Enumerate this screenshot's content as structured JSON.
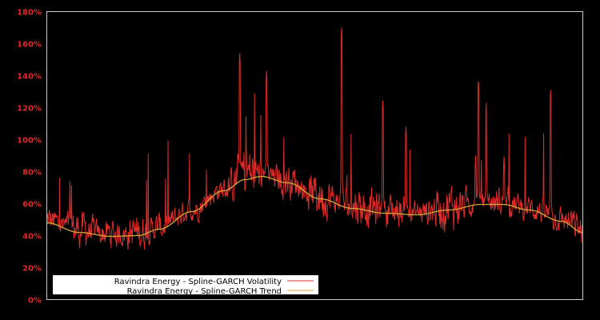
{
  "chart_data": {
    "type": "line",
    "title": "",
    "xlabel": "",
    "ylabel": "",
    "ylim": [
      0,
      180
    ],
    "y_ticks": [
      "0%",
      "20%",
      "40%",
      "60%",
      "80%",
      "100%",
      "120%",
      "140%",
      "160%",
      "180%"
    ],
    "y_tick_values": [
      0,
      20,
      40,
      60,
      80,
      100,
      120,
      140,
      160,
      180
    ],
    "grid": false,
    "legend_position": "lower left",
    "x_normalized": [
      0.0,
      0.06,
      0.12,
      0.17,
      0.21,
      0.27,
      0.33,
      0.37,
      0.4,
      0.45,
      0.51,
      0.57,
      0.63,
      0.69,
      0.75,
      0.81,
      0.85,
      0.9,
      0.96,
      1.0
    ],
    "series": [
      {
        "name": "Ravindra Energy - Spline-GARCH Volatility",
        "color": "#dd2a2a",
        "values": [
          45,
          48,
          36,
          46,
          42,
          55,
          68,
          90,
          80,
          68,
          72,
          50,
          48,
          52,
          47,
          60,
          62,
          55,
          48,
          38
        ],
        "peaks": [
          {
            "x_normalized": 0.36,
            "value": 154
          },
          {
            "x_normalized": 0.41,
            "value": 143
          },
          {
            "x_normalized": 0.55,
            "value": 170
          },
          {
            "x_normalized": 0.627,
            "value": 125
          },
          {
            "x_normalized": 0.67,
            "value": 108
          },
          {
            "x_normalized": 0.82,
            "value": 123
          },
          {
            "x_normalized": 0.8,
            "value": 90
          },
          {
            "x_normalized": 0.805,
            "value": 139
          },
          {
            "x_normalized": 0.853,
            "value": 90
          },
          {
            "x_normalized": 0.94,
            "value": 131
          }
        ]
      },
      {
        "name": "Ravindra Energy - Spline-GARCH Trend",
        "color": "#d4a838",
        "values": [
          48,
          42,
          39.5,
          40,
          44,
          55,
          68,
          75,
          77,
          73,
          63,
          57,
          54,
          53,
          56,
          59.5,
          59.5,
          56,
          49,
          42
        ]
      }
    ]
  },
  "legend": {
    "items": [
      {
        "label": "Ravindra Energy - Spline-GARCH Volatility",
        "color": "#dd2a2a"
      },
      {
        "label": "Ravindra Energy - Spline-GARCH Trend",
        "color": "#d4a838"
      }
    ]
  },
  "colors": {
    "background": "#000000",
    "frame": "#c8c8c8",
    "tick_text": "#dd2a2a",
    "legend_bg": "#ffffff"
  }
}
